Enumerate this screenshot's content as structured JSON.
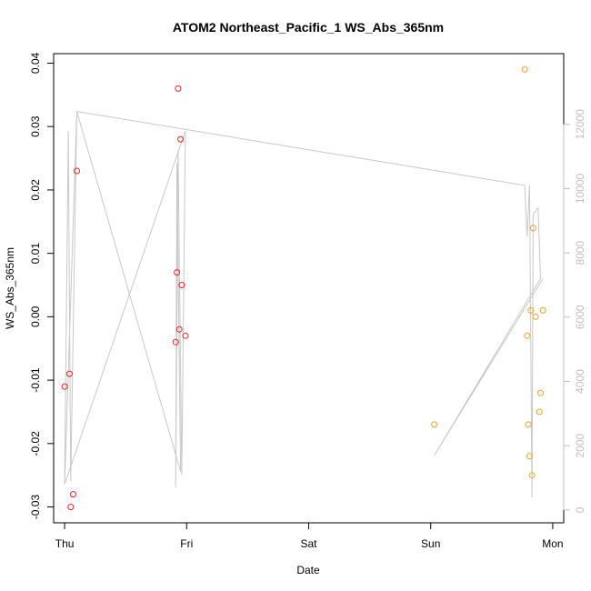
{
  "chart_data": {
    "type": "scatter",
    "title": "ATOM2 Northeast_Pacific_1 WS_Abs_365nm",
    "xlabel": "Date",
    "ylabel": "WS_Abs_365nm",
    "x_ticks": [
      "Thu",
      "Fri",
      "Sat",
      "Sun",
      "Mon"
    ],
    "x_tick_days": [
      0,
      1,
      2,
      3,
      4
    ],
    "xlim": [
      -0.09,
      4.09
    ],
    "ylim": [
      -0.0325,
      0.0415
    ],
    "y_ticks": [
      -0.03,
      -0.02,
      -0.01,
      0.0,
      0.01,
      0.02,
      0.03,
      0.04
    ],
    "y_tick_labels": [
      "-0.03",
      "-0.02",
      "-0.01",
      "0.00",
      "0.01",
      "0.02",
      "0.03",
      "0.04"
    ],
    "y2_ticks": [
      0,
      2000,
      4000,
      6000,
      8000,
      10000,
      12000
    ],
    "y2_tick_labels": [
      "0",
      "2000",
      "4000",
      "6000",
      "8000",
      "10000",
      "12000"
    ],
    "y2lim": [
      -400,
      14200
    ],
    "colors": {
      "series_red": "#ee2222",
      "series_orange": "#f0a030",
      "line": "#c8c8c8",
      "axis_right": "#c0c0c0"
    },
    "series": [
      {
        "color": "red",
        "points": [
          [
            0.0,
            -0.011
          ],
          [
            0.04,
            -0.009
          ],
          [
            0.05,
            -0.03
          ],
          [
            0.07,
            -0.028
          ],
          [
            0.1,
            0.023
          ],
          [
            0.91,
            -0.004
          ],
          [
            0.92,
            0.007
          ],
          [
            0.93,
            0.036
          ],
          [
            0.94,
            -0.002
          ],
          [
            0.95,
            0.028
          ],
          [
            0.96,
            0.005
          ],
          [
            0.99,
            -0.003
          ]
        ]
      },
      {
        "color": "orange",
        "points": [
          [
            3.03,
            -0.017
          ],
          [
            3.77,
            0.039
          ],
          [
            3.79,
            -0.003
          ],
          [
            3.8,
            -0.017
          ],
          [
            3.81,
            -0.022
          ],
          [
            3.82,
            0.001
          ],
          [
            3.83,
            -0.025
          ],
          [
            3.84,
            0.014
          ],
          [
            3.86,
            0.0
          ],
          [
            3.89,
            -0.015
          ],
          [
            3.9,
            -0.012
          ],
          [
            3.92,
            0.001
          ]
        ]
      }
    ],
    "line_y2": [
      [
        0.0,
        900
      ],
      [
        0.03,
        11800
      ],
      [
        0.05,
        900
      ],
      [
        0.1,
        12400
      ],
      [
        0.95,
        1200
      ],
      [
        0.92,
        10800
      ],
      [
        0.91,
        700
      ],
      [
        0.93,
        11200
      ],
      [
        0.96,
        1100
      ],
      [
        0.99,
        11800
      ],
      [
        0.0,
        800
      ],
      [
        0.1,
        12400
      ],
      [
        3.77,
        10100
      ],
      [
        3.79,
        8500
      ],
      [
        3.81,
        10100
      ],
      [
        3.83,
        400
      ],
      [
        3.84,
        9200
      ],
      [
        3.88,
        9400
      ],
      [
        3.9,
        7200
      ],
      [
        3.03,
        1700
      ],
      [
        3.92,
        7200
      ]
    ]
  }
}
